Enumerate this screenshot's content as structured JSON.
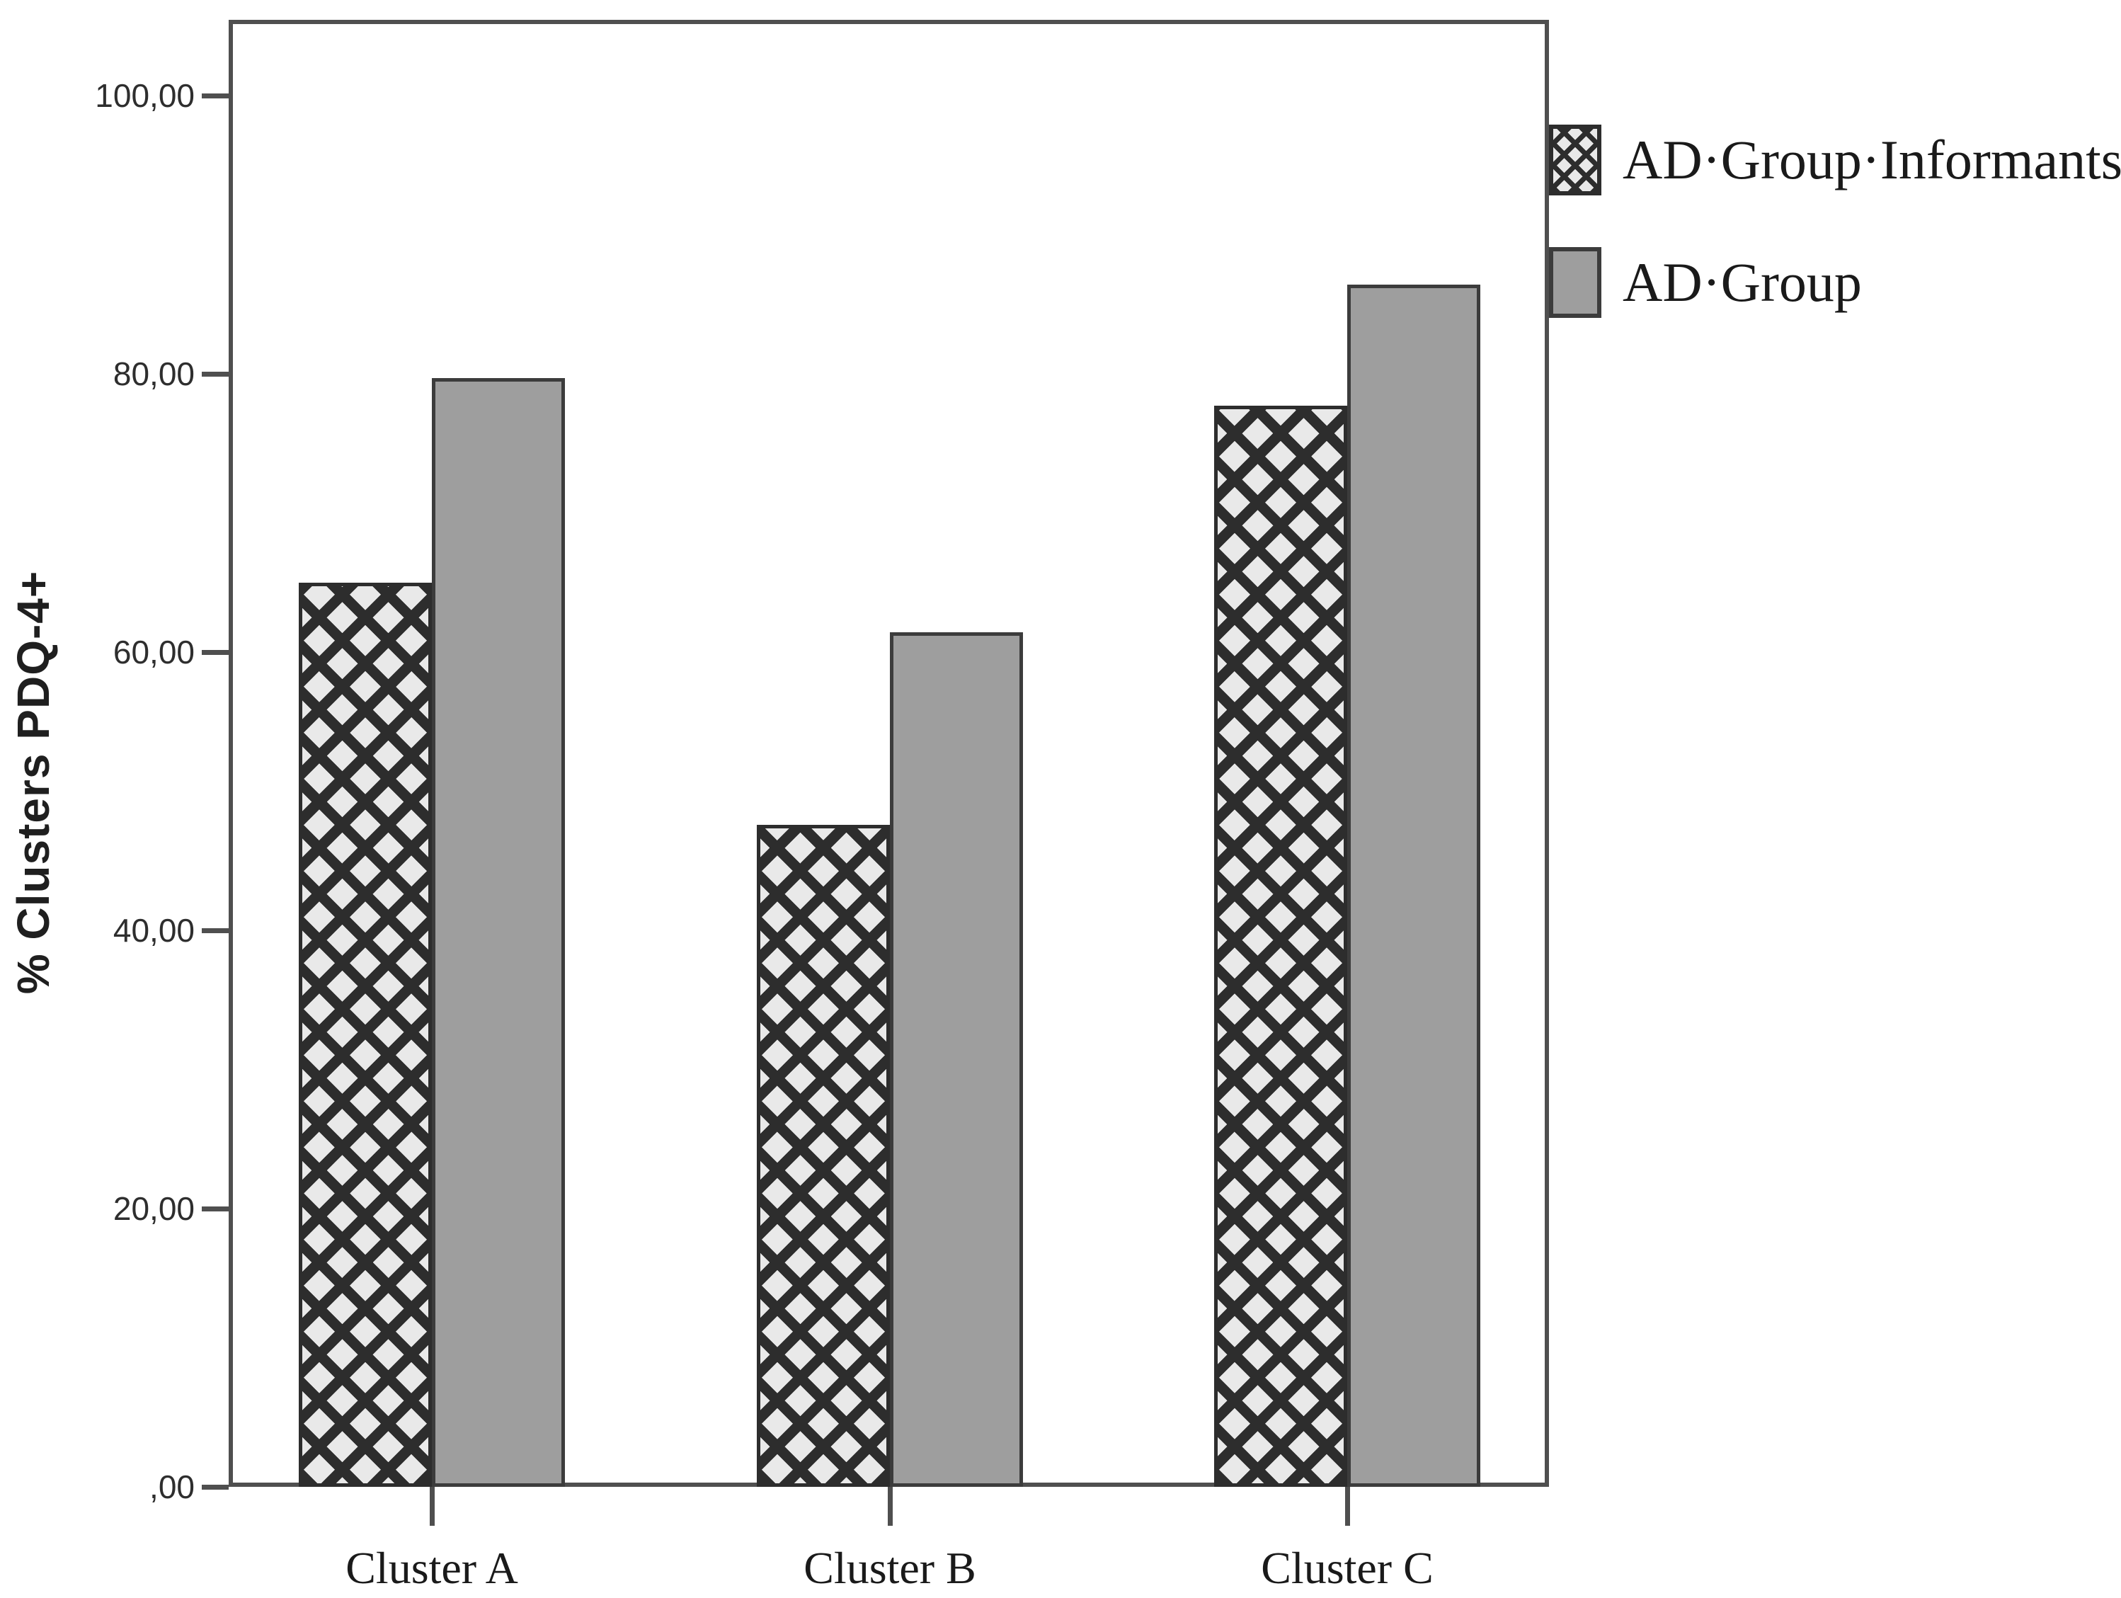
{
  "figure": {
    "y_axis_title": "% Clusters PDQ-4+"
  },
  "chart_data": {
    "type": "bar",
    "title": "",
    "xlabel": "",
    "ylabel": "% Clusters PDQ-4+",
    "categories": [
      "Cluster A",
      "Cluster B",
      "Cluster C"
    ],
    "series": [
      {
        "name": "AD·Group·Informants",
        "style": "crosshatch",
        "values": [
          65.0,
          47.6,
          77.7
        ]
      },
      {
        "name": "AD·Group",
        "style": "solid",
        "values": [
          79.7,
          61.4,
          86.4
        ]
      }
    ],
    "ylim": [
      0,
      100
    ],
    "yticks": [
      {
        "value": 100,
        "label": "100,00"
      },
      {
        "value": 80,
        "label": "80,00"
      },
      {
        "value": 60,
        "label": "60,00"
      },
      {
        "value": 40,
        "label": "40,00"
      },
      {
        "value": 20,
        "label": "20,00"
      },
      {
        "value": 0,
        "label": ",00"
      }
    ],
    "grid": false,
    "decimal_separator": ",",
    "legend": {
      "position": "top-right",
      "entries": [
        "AD·Group·Informants",
        "AD·Group"
      ]
    },
    "colors": {
      "bar_fill": "#9e9e9e",
      "pattern_dark": "#2d2d2d",
      "pattern_light": "#e9e9e9",
      "axis": "#4f4f4f",
      "text": "#1f1f1f"
    }
  }
}
